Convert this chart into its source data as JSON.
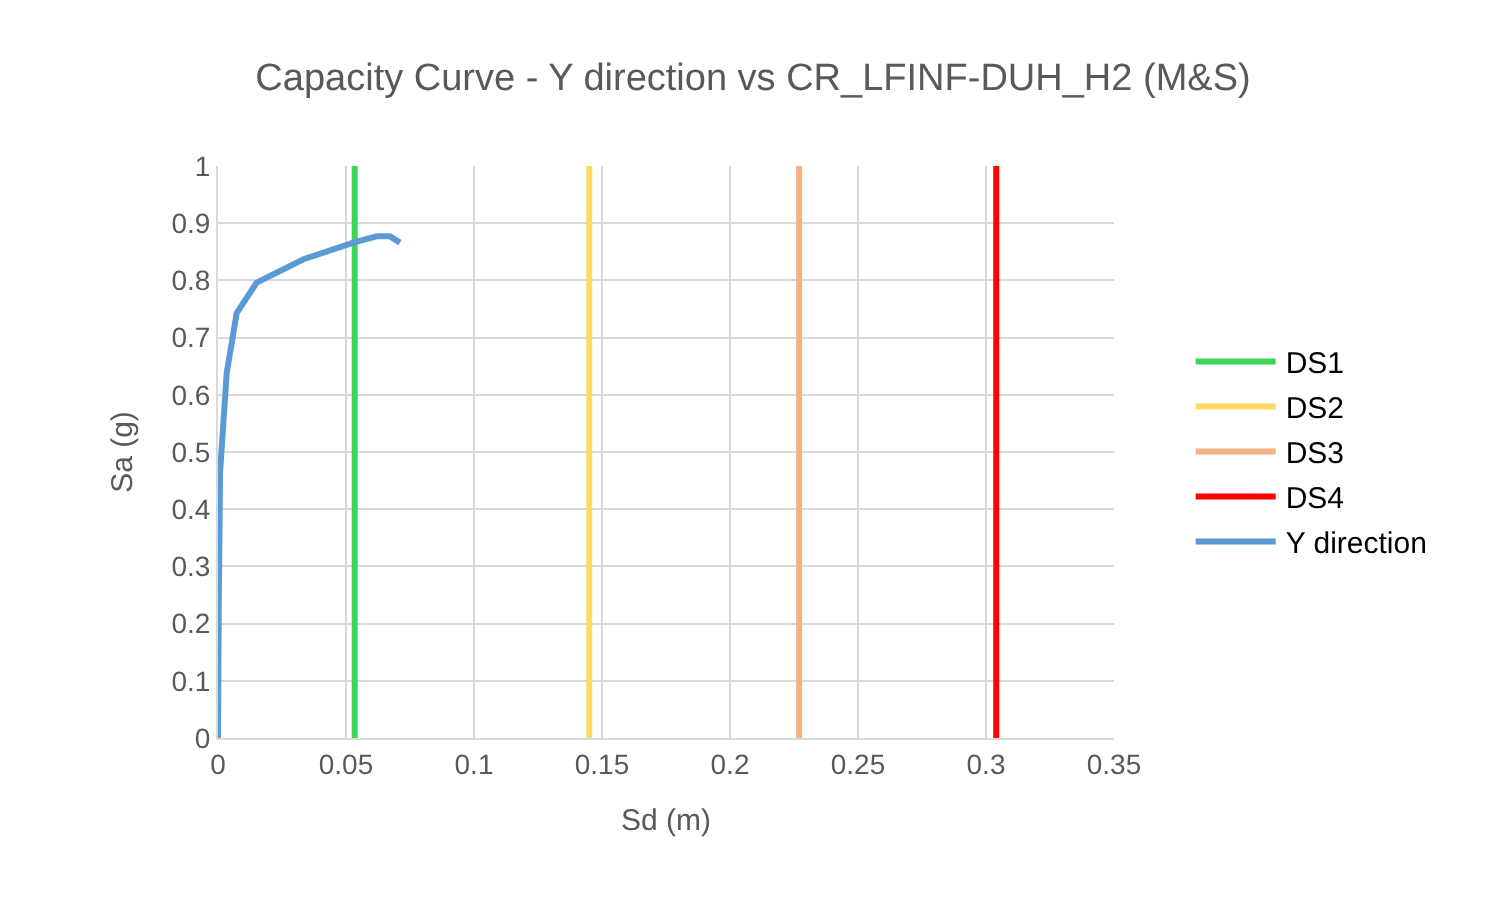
{
  "chart_data": {
    "type": "line",
    "title": "Capacity Curve - Y direction vs CR_LFINF-DUH_H2 (M&S)",
    "xlabel": "Sd (m)",
    "ylabel": "Sa (g)",
    "xlim": [
      0,
      0.35
    ],
    "xticks": [
      0,
      0.05,
      0.1,
      0.15,
      0.2,
      0.25,
      0.3,
      0.35
    ],
    "ylim": [
      0,
      1
    ],
    "yticks": [
      0,
      0.1,
      0.2,
      0.3,
      0.4,
      0.5,
      0.6,
      0.7,
      0.8,
      0.9,
      1
    ],
    "grid": true,
    "legend": "right",
    "marker": "none",
    "line_style": "solid",
    "series": [
      {
        "name": "DS1",
        "color": "#3dd45a",
        "x": [
          0.0534,
          0.0534
        ],
        "values": [
          0,
          1
        ]
      },
      {
        "name": "DS2",
        "color": "#ffd966",
        "x": [
          0.145,
          0.145
        ],
        "values": [
          0,
          1
        ]
      },
      {
        "name": "DS3",
        "color": "#f4b183",
        "x": [
          0.227,
          0.227
        ],
        "values": [
          0,
          1
        ]
      },
      {
        "name": "DS4",
        "color": "#ff0000",
        "x": [
          0.304,
          0.304
        ],
        "values": [
          0,
          1
        ]
      },
      {
        "name": "Y direction",
        "color": "#5b9bd5",
        "x": [
          0,
          0.0003,
          0.0008,
          0.0034,
          0.0073,
          0.0151,
          0.0334,
          0.0529,
          0.062,
          0.0672,
          0.0711
        ],
        "values": [
          0,
          0.23,
          0.463,
          0.638,
          0.743,
          0.796,
          0.837,
          0.866,
          0.877,
          0.877,
          0.866
        ]
      }
    ]
  }
}
